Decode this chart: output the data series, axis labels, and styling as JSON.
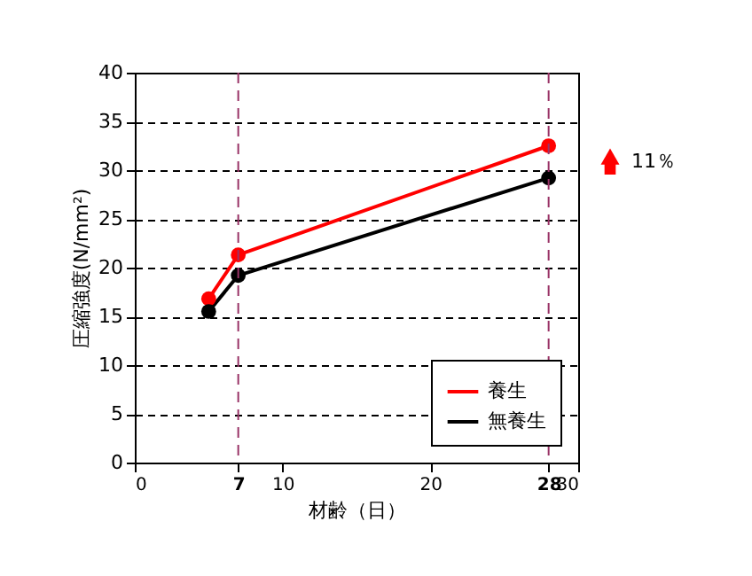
{
  "chart_data": {
    "type": "line",
    "xlabel": "材齢（日）",
    "ylabel": "圧縮強度(N/mm²)",
    "x": [
      5,
      7,
      28
    ],
    "series": [
      {
        "name": "養生",
        "color": "#ff0000",
        "values": [
          16.8,
          21.3,
          32.5
        ]
      },
      {
        "name": "無養生",
        "color": "#000000",
        "values": [
          15.5,
          19.2,
          29.2
        ]
      }
    ],
    "xlim": [
      0,
      30
    ],
    "xticks": [
      0,
      7,
      10,
      20,
      28,
      30
    ],
    "ylim": [
      0,
      40
    ],
    "yticks": [
      0,
      5,
      10,
      15,
      20,
      25,
      30,
      35,
      40
    ],
    "ref_lines": [
      {
        "axis": "x",
        "value": 7,
        "color": "#993366",
        "line_style": "dashed"
      },
      {
        "axis": "x",
        "value": 28,
        "color": "#993366",
        "line_style": "dashed"
      }
    ],
    "annotations": [
      "11％"
    ],
    "grid": "y",
    "legend": "bottom right",
    "marker": "circle",
    "line_style": "solid"
  }
}
